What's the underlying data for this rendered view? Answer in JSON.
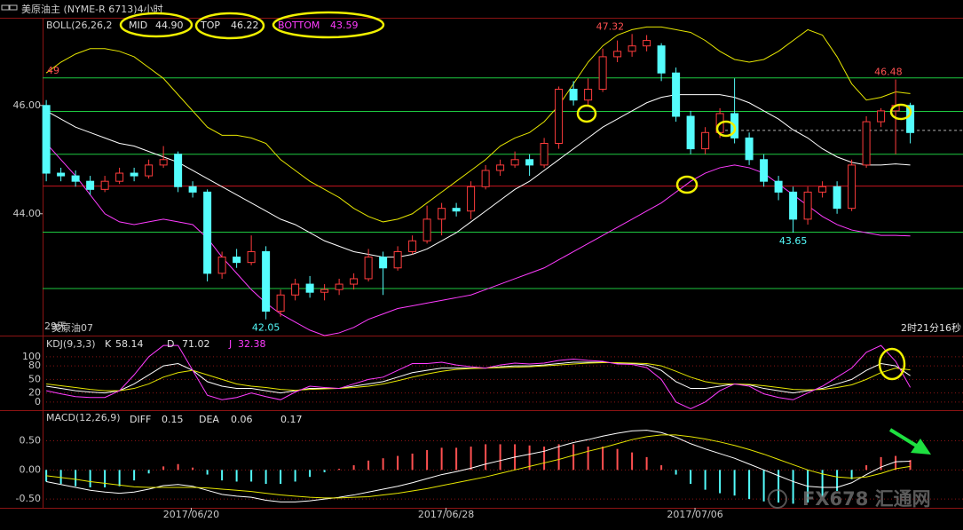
{
  "header": {
    "title": "美原油主 (NYME-R 6713)4小时"
  },
  "watermark": "FX678 汇通网",
  "chart_data": [
    {
      "type": "candlestick",
      "indicator": "BOLL(26,26,2",
      "xlim": [
        -0.25,
        62.6
      ],
      "ylim": [
        41.75,
        47.62
      ],
      "yticks": [
        {
          "value": 46,
          "label": "46.00"
        },
        {
          "value": 44,
          "label": "44.00"
        }
      ],
      "up_color": "#ff3c3c",
      "down_color": "#54fcfc",
      "ohlc": [
        [
          46.0,
          46.1,
          44.6,
          44.75
        ],
        [
          44.75,
          44.85,
          44.6,
          44.7
        ],
        [
          44.7,
          44.8,
          44.5,
          44.6
        ],
        [
          44.6,
          44.7,
          44.35,
          44.45
        ],
        [
          44.45,
          44.7,
          44.4,
          44.6
        ],
        [
          44.6,
          44.85,
          44.55,
          44.75
        ],
        [
          44.75,
          44.85,
          44.6,
          44.7
        ],
        [
          44.7,
          45.0,
          44.65,
          44.9
        ],
        [
          44.9,
          45.25,
          44.85,
          45.0
        ],
        [
          45.1,
          45.15,
          44.4,
          44.5
        ],
        [
          44.5,
          44.6,
          44.3,
          44.4
        ],
        [
          44.4,
          44.45,
          42.75,
          42.9
        ],
        [
          42.9,
          43.3,
          42.8,
          43.2
        ],
        [
          43.2,
          43.35,
          43.0,
          43.1
        ],
        [
          43.1,
          43.6,
          43.05,
          43.3
        ],
        [
          43.3,
          43.4,
          42.05,
          42.2
        ],
        [
          42.2,
          42.6,
          42.1,
          42.5
        ],
        [
          42.5,
          42.8,
          42.4,
          42.7
        ],
        [
          42.7,
          42.85,
          42.45,
          42.55
        ],
        [
          42.55,
          42.7,
          42.4,
          42.6
        ],
        [
          42.6,
          42.8,
          42.5,
          42.7
        ],
        [
          42.7,
          42.9,
          42.6,
          42.8
        ],
        [
          42.8,
          43.35,
          42.75,
          43.2
        ],
        [
          43.2,
          43.3,
          42.5,
          43.0
        ],
        [
          43.0,
          43.4,
          42.95,
          43.3
        ],
        [
          43.3,
          43.6,
          43.25,
          43.5
        ],
        [
          43.5,
          44.15,
          43.45,
          43.9
        ],
        [
          43.9,
          44.2,
          43.6,
          44.1
        ],
        [
          44.1,
          44.2,
          43.95,
          44.05
        ],
        [
          44.05,
          44.6,
          43.9,
          44.5
        ],
        [
          44.5,
          44.9,
          44.45,
          44.8
        ],
        [
          44.8,
          45.0,
          44.7,
          44.9
        ],
        [
          44.9,
          45.15,
          44.85,
          45.0
        ],
        [
          45.0,
          45.1,
          44.7,
          44.9
        ],
        [
          44.9,
          45.4,
          44.85,
          45.3
        ],
        [
          45.3,
          46.35,
          45.2,
          46.3
        ],
        [
          46.3,
          46.45,
          46.0,
          46.1
        ],
        [
          46.1,
          46.5,
          46.0,
          46.3
        ],
        [
          46.3,
          47.05,
          46.25,
          46.9
        ],
        [
          46.9,
          47.2,
          46.8,
          47.0
        ],
        [
          47.0,
          47.32,
          46.9,
          47.1
        ],
        [
          47.1,
          47.3,
          47.0,
          47.2
        ],
        [
          47.1,
          47.15,
          46.45,
          46.6
        ],
        [
          46.6,
          46.7,
          45.7,
          45.8
        ],
        [
          45.8,
          45.9,
          45.1,
          45.2
        ],
        [
          45.2,
          45.6,
          45.1,
          45.5
        ],
        [
          45.5,
          45.95,
          45.4,
          45.85
        ],
        [
          45.85,
          46.5,
          45.3,
          45.4
        ],
        [
          45.4,
          45.5,
          44.9,
          45.0
        ],
        [
          45.0,
          45.1,
          44.5,
          44.6
        ],
        [
          44.6,
          44.7,
          44.25,
          44.4
        ],
        [
          44.4,
          44.5,
          43.65,
          43.9
        ],
        [
          43.9,
          44.5,
          43.8,
          44.4
        ],
        [
          44.4,
          44.6,
          44.3,
          44.5
        ],
        [
          44.5,
          44.6,
          44.0,
          44.1
        ],
        [
          44.1,
          45.0,
          44.05,
          44.9
        ],
        [
          44.9,
          45.8,
          44.85,
          45.7
        ],
        [
          45.7,
          45.95,
          45.6,
          45.9
        ],
        [
          45.9,
          46.48,
          45.1,
          46.0
        ],
        [
          46.0,
          46.05,
          45.3,
          45.5
        ]
      ],
      "series": [
        {
          "name": "MID",
          "color": "#ffffff",
          "last_label": "44.90",
          "values": [
            45.9,
            45.75,
            45.6,
            45.5,
            45.4,
            45.3,
            45.25,
            45.15,
            45.05,
            44.95,
            44.8,
            44.65,
            44.5,
            44.35,
            44.2,
            44.05,
            43.9,
            43.8,
            43.65,
            43.5,
            43.4,
            43.3,
            43.25,
            43.2,
            43.2,
            43.25,
            43.35,
            43.5,
            43.65,
            43.85,
            44.05,
            44.25,
            44.45,
            44.6,
            44.8,
            45.0,
            45.2,
            45.4,
            45.6,
            45.75,
            45.9,
            46.05,
            46.15,
            46.2,
            46.2,
            46.2,
            46.2,
            46.15,
            46.05,
            45.9,
            45.75,
            45.55,
            45.4,
            45.2,
            45.05,
            44.95,
            44.9,
            44.9,
            44.92,
            44.9
          ]
        },
        {
          "name": "TOP",
          "color": "#e6e600",
          "last_label": "46.22",
          "values": [
            46.6,
            46.8,
            46.95,
            47.05,
            47.05,
            47.0,
            46.9,
            46.7,
            46.5,
            46.2,
            45.9,
            45.6,
            45.45,
            45.45,
            45.4,
            45.3,
            45.0,
            44.8,
            44.6,
            44.45,
            44.3,
            44.1,
            43.95,
            43.85,
            43.9,
            44.0,
            44.2,
            44.4,
            44.6,
            44.8,
            45.0,
            45.25,
            45.4,
            45.5,
            45.7,
            46.0,
            46.4,
            46.8,
            47.1,
            47.3,
            47.4,
            47.45,
            47.45,
            47.4,
            47.35,
            47.2,
            47.0,
            46.85,
            46.8,
            46.85,
            47.0,
            47.2,
            47.4,
            47.3,
            46.9,
            46.4,
            46.1,
            46.15,
            46.25,
            46.22
          ]
        },
        {
          "name": "BOTTOM",
          "color": "#ff3cff",
          "last_label": "43.59",
          "values": [
            45.3,
            45.0,
            44.7,
            44.35,
            44.0,
            43.85,
            43.8,
            43.85,
            43.9,
            43.85,
            43.8,
            43.55,
            43.2,
            42.9,
            42.6,
            42.35,
            42.15,
            42.0,
            41.85,
            41.75,
            41.8,
            41.9,
            42.05,
            42.15,
            42.25,
            42.3,
            42.35,
            42.4,
            42.45,
            42.5,
            42.6,
            42.7,
            42.8,
            42.9,
            43.0,
            43.15,
            43.3,
            43.45,
            43.6,
            43.75,
            43.9,
            44.05,
            44.2,
            44.4,
            44.6,
            44.75,
            44.85,
            44.9,
            44.85,
            44.75,
            44.55,
            44.35,
            44.15,
            43.95,
            43.8,
            43.7,
            43.65,
            43.6,
            43.6,
            43.59
          ]
        }
      ],
      "levels": [
        {
          "value": 46.51,
          "color": "#1ec940"
        },
        {
          "value": 45.89,
          "color": "#1ec940"
        },
        {
          "value": 45.1,
          "color": "#1ec940"
        },
        {
          "value": 43.66,
          "color": "#1ec940"
        },
        {
          "value": 42.62,
          "color": "#1ec940"
        },
        {
          "value": 44.51,
          "color": "#c8141e"
        },
        {
          "value": 45.54,
          "color": "#b4b4b4",
          "dashed": true,
          "from_x": 46
        }
      ],
      "annotations": [
        {
          "x": 38.5,
          "value": 47.32,
          "color": "#ff5050"
        },
        {
          "x": 57.5,
          "value": 46.48,
          "color": "#ff5050"
        },
        {
          "x": 15,
          "value": 42.05,
          "color": "#54fcfc"
        },
        {
          "x": 51,
          "value": 43.65,
          "color": "#54fcfc"
        }
      ],
      "notes": [
        "49",
        "29天",
        "美原油07",
        "2时21分16秒"
      ]
    },
    {
      "type": "line",
      "indicator": "KDJ(9,3,3)",
      "xlim": [
        -0.25,
        62.6
      ],
      "ylim": [
        -18,
        143
      ],
      "yticks": [
        100,
        80,
        50,
        20,
        0
      ],
      "series": [
        {
          "name": "K",
          "color": "#ffffff",
          "values": [
            35,
            30,
            25,
            22,
            20,
            25,
            40,
            60,
            80,
            85,
            70,
            45,
            35,
            30,
            30,
            25,
            20,
            25,
            30,
            30,
            30,
            35,
            40,
            45,
            55,
            65,
            70,
            75,
            75,
            75,
            75,
            78,
            80,
            80,
            82,
            85,
            88,
            88,
            88,
            86,
            85,
            82,
            70,
            45,
            30,
            30,
            35,
            40,
            38,
            30,
            25,
            20,
            25,
            30,
            40,
            50,
            70,
            85,
            80,
            58.14
          ]
        },
        {
          "name": "D",
          "color": "#e6e600",
          "values": [
            40,
            36,
            32,
            28,
            25,
            25,
            30,
            40,
            55,
            65,
            70,
            60,
            50,
            40,
            35,
            32,
            28,
            26,
            28,
            29,
            30,
            32,
            35,
            40,
            47,
            55,
            62,
            68,
            72,
            74,
            75,
            76,
            77,
            78,
            80,
            82,
            84,
            86,
            87,
            87,
            86,
            85,
            80,
            68,
            55,
            45,
            40,
            40,
            39,
            36,
            32,
            28,
            27,
            28,
            32,
            38,
            50,
            65,
            75,
            71.02
          ]
        },
        {
          "name": "J",
          "color": "#ff3cff",
          "values": [
            25,
            18,
            12,
            10,
            10,
            25,
            60,
            100,
            125,
            125,
            70,
            15,
            5,
            10,
            20,
            12,
            5,
            22,
            35,
            32,
            30,
            40,
            50,
            55,
            70,
            85,
            85,
            88,
            82,
            78,
            75,
            82,
            86,
            84,
            86,
            92,
            95,
            92,
            90,
            84,
            83,
            76,
            50,
            0,
            -15,
            0,
            25,
            40,
            35,
            18,
            10,
            5,
            20,
            35,
            55,
            75,
            110,
            125,
            90,
            32.38
          ]
        }
      ]
    },
    {
      "type": "macd",
      "indicator": "MACD(12,26,9)",
      "xlim": [
        -0.25,
        62.6
      ],
      "ylim": [
        -0.65,
        1.01
      ],
      "yticks": [
        {
          "value": 0.5,
          "label": "0.50"
        },
        {
          "value": 0,
          "label": "0.00"
        },
        {
          "value": -0.5,
          "label": "-0.50"
        }
      ],
      "xticks": [
        {
          "value": 9.9,
          "label": "2017/06/20"
        },
        {
          "value": 27.3,
          "label": "2017/06/28"
        },
        {
          "value": 44.3,
          "label": "2017/07/06"
        }
      ],
      "series": [
        {
          "name": "DIFF",
          "color": "#ffffff",
          "values": [
            -0.2,
            -0.25,
            -0.3,
            -0.35,
            -0.38,
            -0.4,
            -0.38,
            -0.33,
            -0.27,
            -0.25,
            -0.28,
            -0.35,
            -0.42,
            -0.45,
            -0.47,
            -0.52,
            -0.55,
            -0.55,
            -0.53,
            -0.5,
            -0.47,
            -0.43,
            -0.38,
            -0.33,
            -0.28,
            -0.22,
            -0.15,
            -0.08,
            -0.03,
            0.03,
            0.1,
            0.16,
            0.22,
            0.27,
            0.32,
            0.4,
            0.47,
            0.52,
            0.58,
            0.63,
            0.67,
            0.68,
            0.64,
            0.56,
            0.45,
            0.36,
            0.28,
            0.2,
            0.1,
            0.0,
            -0.1,
            -0.2,
            -0.28,
            -0.3,
            -0.3,
            -0.22,
            -0.08,
            0.05,
            0.14,
            0.15
          ]
        },
        {
          "name": "DEA",
          "color": "#e6e600",
          "values": [
            -0.1,
            -0.13,
            -0.16,
            -0.2,
            -0.23,
            -0.26,
            -0.29,
            -0.3,
            -0.3,
            -0.3,
            -0.3,
            -0.31,
            -0.33,
            -0.35,
            -0.37,
            -0.4,
            -0.43,
            -0.45,
            -0.47,
            -0.48,
            -0.48,
            -0.47,
            -0.46,
            -0.43,
            -0.4,
            -0.36,
            -0.32,
            -0.27,
            -0.22,
            -0.17,
            -0.12,
            -0.06,
            0.0,
            0.06,
            0.12,
            0.18,
            0.25,
            0.32,
            0.38,
            0.45,
            0.52,
            0.57,
            0.6,
            0.6,
            0.57,
            0.53,
            0.48,
            0.42,
            0.35,
            0.27,
            0.18,
            0.09,
            0.0,
            -0.07,
            -0.12,
            -0.14,
            -0.12,
            -0.06,
            0.02,
            0.06
          ]
        }
      ],
      "histogram": {
        "up_color": "#ff5050",
        "down_color": "#54fcfc",
        "values": [
          -0.2,
          -0.24,
          -0.28,
          -0.3,
          -0.3,
          -0.28,
          -0.18,
          -0.06,
          0.06,
          0.1,
          0.04,
          -0.08,
          -0.18,
          -0.2,
          -0.2,
          -0.24,
          -0.24,
          -0.2,
          -0.12,
          -0.04,
          0.02,
          0.08,
          0.16,
          0.2,
          0.24,
          0.28,
          0.34,
          0.38,
          0.38,
          0.4,
          0.44,
          0.44,
          0.44,
          0.42,
          0.4,
          0.44,
          0.44,
          0.4,
          0.4,
          0.36,
          0.3,
          0.22,
          0.08,
          -0.08,
          -0.24,
          -0.34,
          -0.4,
          -0.44,
          -0.5,
          -0.54,
          -0.56,
          -0.58,
          -0.56,
          -0.46,
          -0.36,
          -0.16,
          0.08,
          0.22,
          0.24,
          0.17
        ]
      }
    }
  ]
}
